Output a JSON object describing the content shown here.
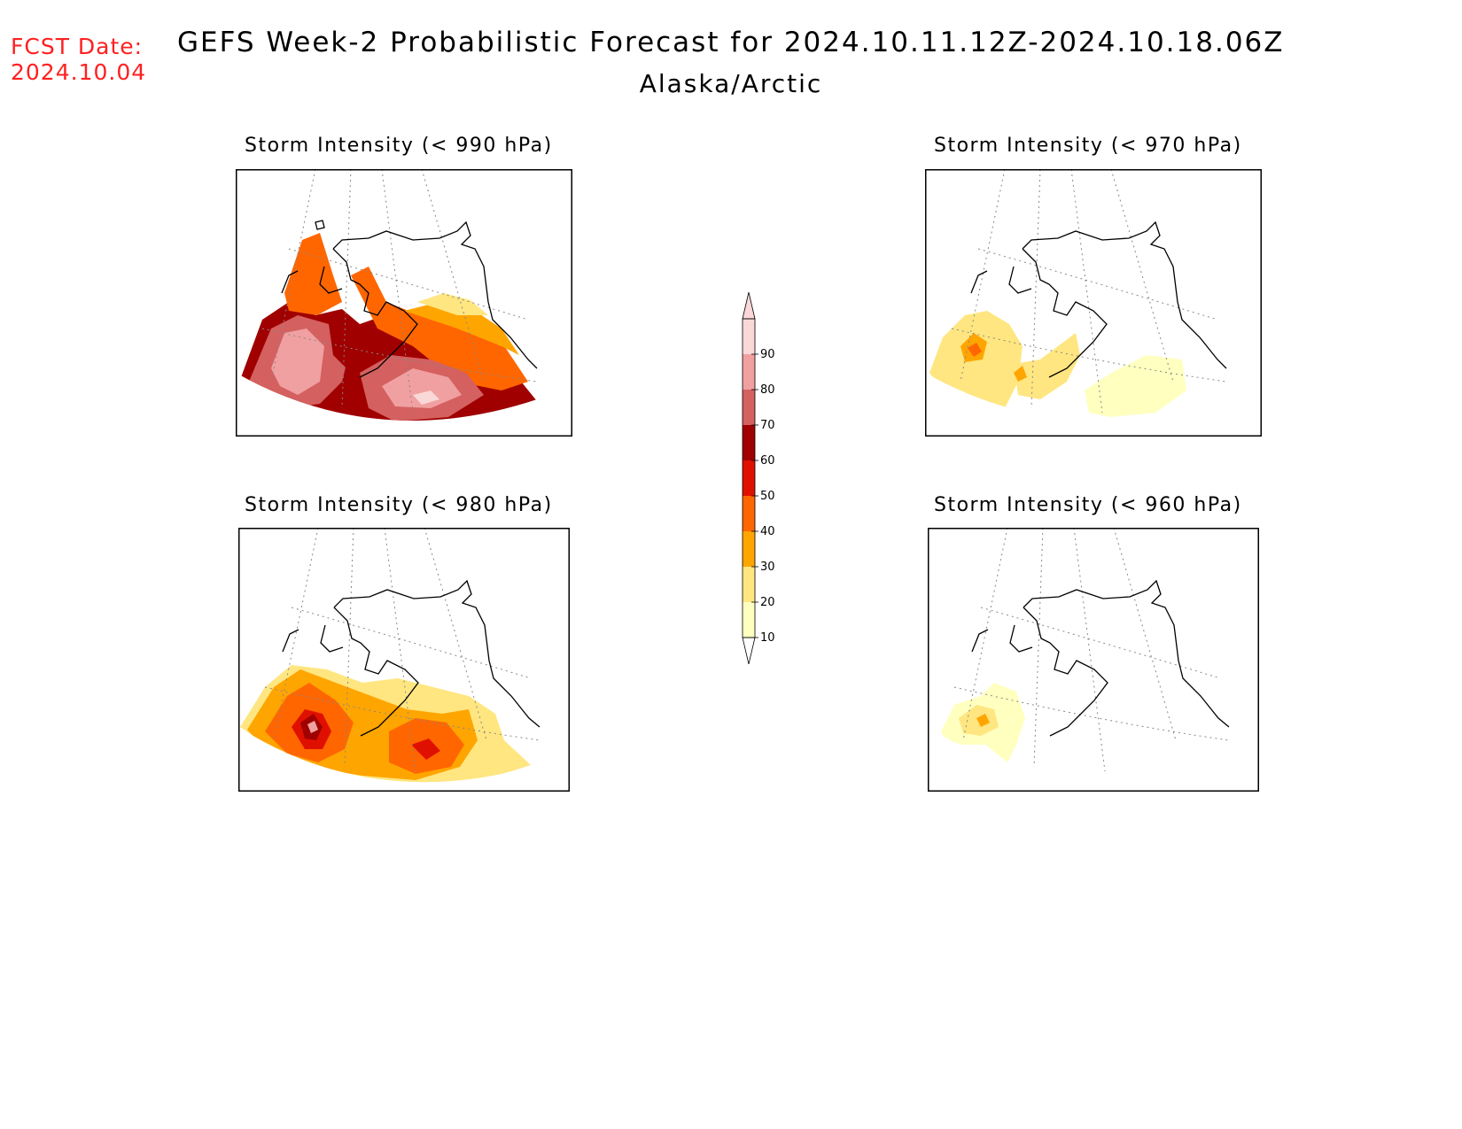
{
  "header": {
    "fcst_label": "FCST Date:",
    "fcst_date": "2024.10.04",
    "title": "GEFS Week-2 Probabilistic Forecast for 2024.10.11.12Z-2024.10.18.06Z",
    "region": "Alaska/Arctic"
  },
  "panels": [
    {
      "id": "p990",
      "title": "Storm Intensity (< 990 hPa)"
    },
    {
      "id": "p970",
      "title": "Storm Intensity (< 970 hPa)"
    },
    {
      "id": "p980",
      "title": "Storm Intensity (< 980 hPa)"
    },
    {
      "id": "p960",
      "title": "Storm Intensity (< 960 hPa)"
    }
  ],
  "colorbar": {
    "levels": [
      "10",
      "20",
      "30",
      "40",
      "50",
      "60",
      "70",
      "80",
      "90"
    ],
    "colors": [
      "#ffffc0",
      "#ffe680",
      "#ffa500",
      "#ff6600",
      "#e01000",
      "#a00000",
      "#d46060",
      "#f0a0a0",
      "#fad8d8"
    ]
  }
}
